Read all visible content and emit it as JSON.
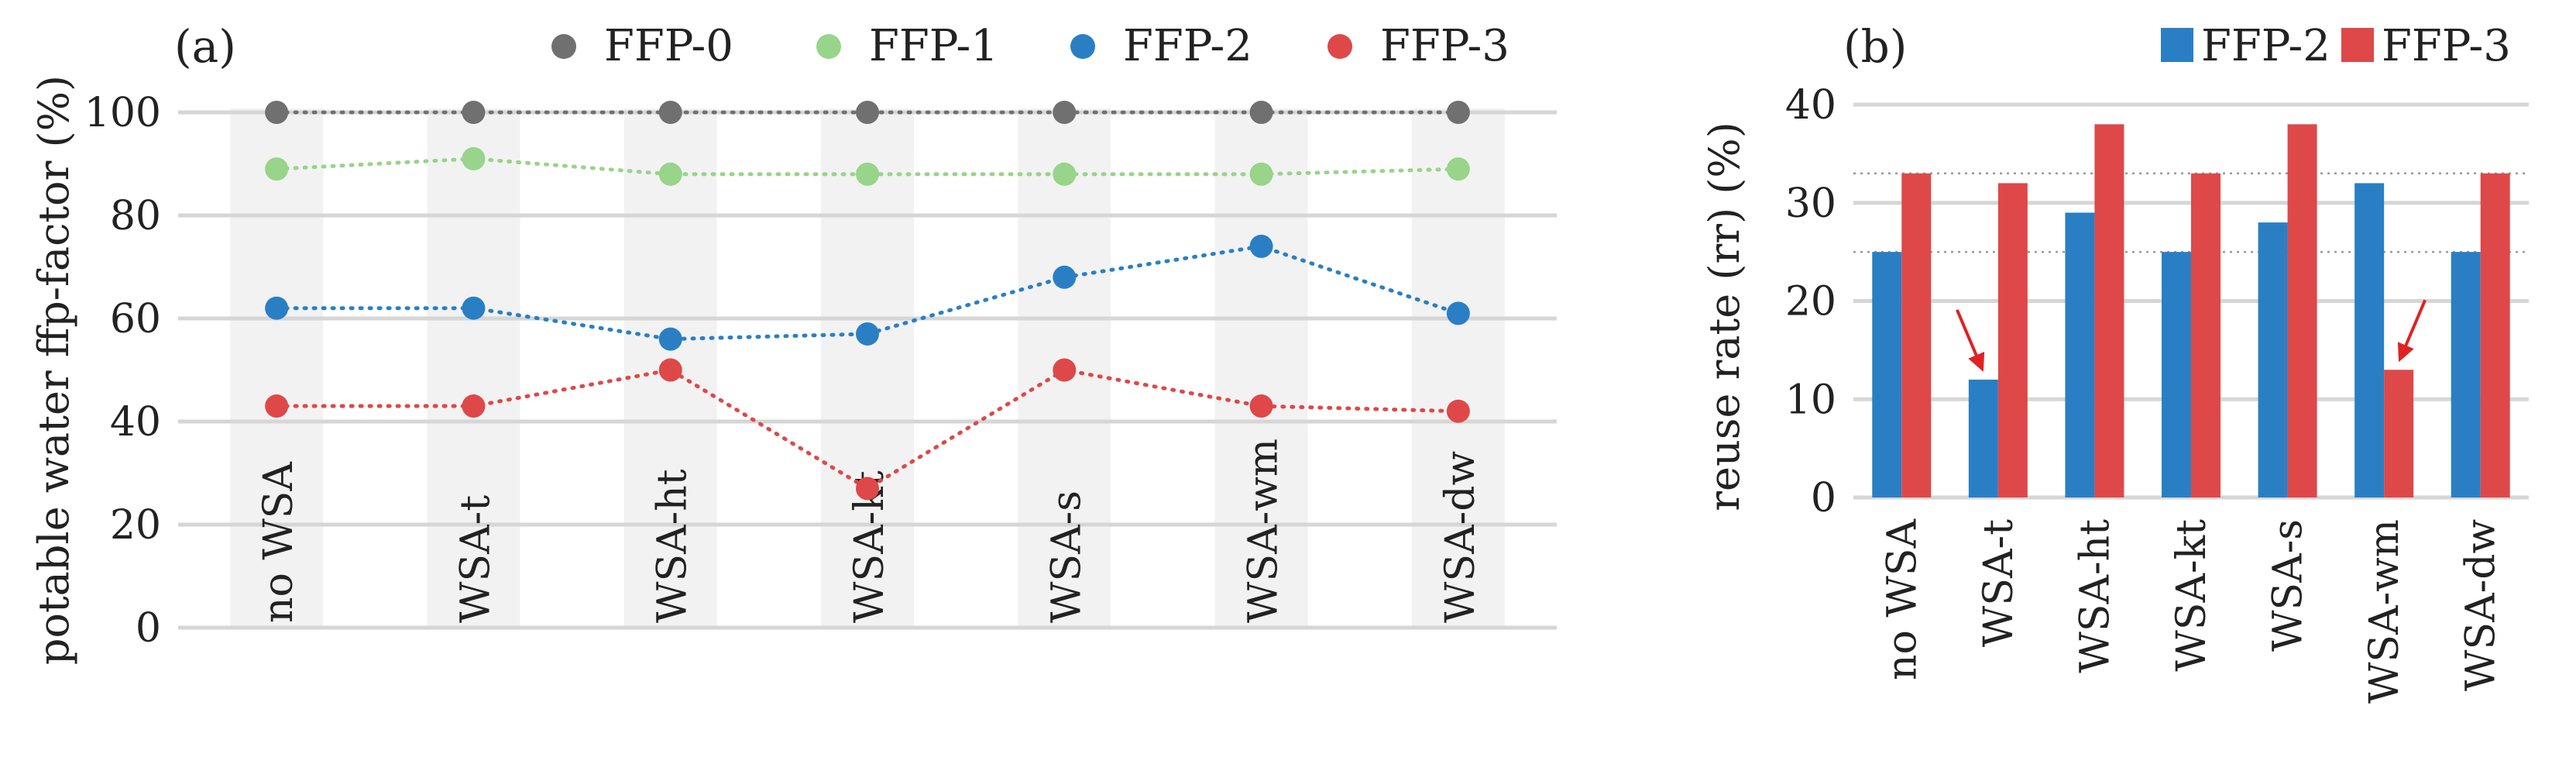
{
  "chart_data": [
    {
      "panel_label": "(a)",
      "type": "line",
      "ylabel": "potable water ffp-factor (%)",
      "ylim": [
        0,
        100
      ],
      "yticks": [
        0,
        20,
        40,
        60,
        80,
        100
      ],
      "categories": [
        "no WSA",
        "WSA-t",
        "WSA-ht",
        "WSA-kt",
        "WSA-s",
        "WSA-wm",
        "WSA-dw"
      ],
      "legend_position": "top",
      "grid": true,
      "series": [
        {
          "name": "FFP-0",
          "color": "#707070",
          "values": [
            100,
            100,
            100,
            100,
            100,
            100,
            100
          ]
        },
        {
          "name": "FFP-1",
          "color": "#98d48a",
          "values": [
            89,
            91,
            88,
            88,
            88,
            88,
            89
          ]
        },
        {
          "name": "FFP-2",
          "color": "#2a7fc4",
          "values": [
            62,
            62,
            56,
            57,
            68,
            74,
            61
          ]
        },
        {
          "name": "FFP-3",
          "color": "#de4848",
          "values": [
            43,
            43,
            50,
            27,
            50,
            43,
            42
          ]
        }
      ]
    },
    {
      "panel_label": "(b)",
      "type": "bar",
      "ylabel": "reuse rate (rr) (%)",
      "ylim": [
        0,
        40
      ],
      "yticks": [
        0,
        10,
        20,
        30,
        40
      ],
      "categories": [
        "no WSA",
        "WSA-t",
        "WSA-ht",
        "WSA-kt",
        "WSA-s",
        "WSA-wm",
        "WSA-dw"
      ],
      "legend_position": "top",
      "grid": true,
      "reference_lines": [
        25,
        33
      ],
      "arrow_annotations": [
        {
          "category": "WSA-t",
          "series": "FFP-2",
          "value": 12
        },
        {
          "category": "WSA-wm",
          "series": "FFP-3",
          "value": 13
        }
      ],
      "series": [
        {
          "name": "FFP-2",
          "color": "#2a7fc4",
          "values": [
            25,
            12,
            29,
            25,
            28,
            32,
            25
          ]
        },
        {
          "name": "FFP-3",
          "color": "#de4848",
          "values": [
            33,
            32,
            38,
            33,
            38,
            13,
            33
          ]
        }
      ]
    }
  ]
}
